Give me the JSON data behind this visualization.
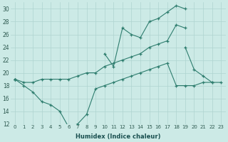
{
  "x": [
    0,
    1,
    2,
    3,
    4,
    5,
    6,
    7,
    8,
    9,
    10,
    11,
    12,
    13,
    14,
    15,
    16,
    17,
    18,
    19,
    20,
    21,
    22,
    23
  ],
  "line_top": [
    19,
    null,
    null,
    null,
    null,
    null,
    null,
    null,
    null,
    null,
    23,
    21,
    27,
    26,
    25.5,
    28,
    28.5,
    29.5,
    30.5,
    30,
    null,
    null,
    null,
    null
  ],
  "line_mid_upper": [
    19,
    null,
    null,
    null,
    null,
    null,
    null,
    null,
    null,
    null,
    null,
    null,
    null,
    null,
    null,
    null,
    null,
    null,
    null,
    24,
    20.5,
    19.5,
    18.5,
    null
  ],
  "line_mid_lower": [
    19,
    18.5,
    18.5,
    19,
    19,
    19,
    19,
    19.5,
    20,
    20,
    21,
    21.5,
    22,
    22.5,
    23,
    24,
    24.5,
    25,
    27.5,
    27,
    null,
    null,
    null,
    null
  ],
  "line_bottom": [
    19,
    18,
    17,
    15.5,
    15,
    14,
    11.5,
    12,
    13.5,
    17.5,
    18,
    18.5,
    19,
    19.5,
    20,
    20.5,
    21,
    21.5,
    18,
    18,
    18,
    18.5,
    18.5,
    18.5
  ],
  "color": "#2e7d6e",
  "bg_color": "#cceae6",
  "grid_color": "#afd4d0",
  "xlabel": "Humidex (Indice chaleur)",
  "ylim": [
    12,
    31
  ],
  "xlim": [
    -0.5,
    23.5
  ],
  "yticks": [
    12,
    14,
    16,
    18,
    20,
    22,
    24,
    26,
    28,
    30
  ],
  "xticks": [
    0,
    1,
    2,
    3,
    4,
    5,
    6,
    7,
    8,
    9,
    10,
    11,
    12,
    13,
    14,
    15,
    16,
    17,
    18,
    19,
    20,
    21,
    22,
    23
  ]
}
